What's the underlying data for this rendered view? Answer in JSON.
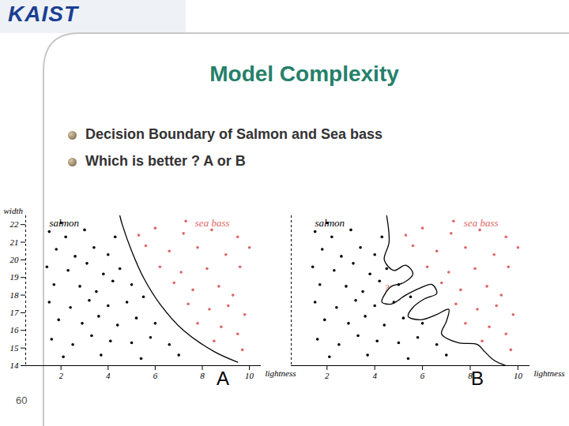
{
  "slide": {
    "logo": "KAIST",
    "title": "Model Complexity",
    "bullets": [
      "Decision Boundary of Salmon and Sea bass",
      "Which is better ?  A or B"
    ],
    "page_number": "60"
  },
  "chart_data": [
    {
      "type": "scatter",
      "title": "A",
      "x_label": "lightness",
      "y_label": "width",
      "xlim": [
        0.5,
        10.5
      ],
      "ylim": [
        14,
        22.5
      ],
      "xticks": [
        2,
        4,
        6,
        8,
        10
      ],
      "yticks": [
        14,
        15,
        16,
        17,
        18,
        19,
        20,
        21,
        22
      ],
      "grid": false,
      "tick_labels": true,
      "series": [
        {
          "name": "salmon",
          "color": "#000000",
          "marker": "circle",
          "x": [
            1.5,
            2.2,
            3.0,
            1.8,
            2.6,
            3.4,
            4.0,
            1.4,
            2.3,
            3.1,
            3.8,
            4.5,
            1.7,
            2.8,
            3.5,
            4.2,
            5.0,
            1.5,
            2.4,
            3.2,
            4.0,
            4.8,
            5.5,
            1.9,
            2.9,
            3.6,
            4.4,
            5.2,
            6.0,
            1.6,
            2.5,
            3.3,
            4.1,
            5.0,
            5.8,
            6.6,
            2.1,
            3.7,
            5.4,
            7.0,
            4.3,
            2.0
          ],
          "y": [
            21.6,
            21.3,
            21.7,
            20.6,
            20.2,
            20.7,
            20.3,
            19.6,
            19.4,
            19.8,
            19.2,
            19.5,
            18.6,
            18.5,
            18.2,
            18.8,
            18.6,
            17.6,
            17.3,
            17.7,
            17.4,
            17.6,
            17.9,
            16.6,
            16.4,
            16.8,
            16.3,
            16.7,
            16.4,
            15.5,
            15.2,
            15.7,
            15.4,
            15.3,
            15.6,
            15.2,
            14.5,
            14.6,
            14.4,
            14.6,
            21.3,
            22.1
          ]
        },
        {
          "name": "sea bass",
          "color": "#e06666",
          "marker": "circle",
          "x": [
            6.0,
            7.2,
            8.4,
            9.5,
            5.6,
            6.6,
            7.8,
            9.0,
            6.2,
            7.1,
            8.2,
            9.6,
            6.8,
            7.6,
            8.7,
            9.3,
            7.4,
            8.3,
            9.1,
            9.8,
            7.8,
            8.8,
            9.5,
            8.5,
            9.7,
            5.3,
            10.0,
            7.3
          ],
          "y": [
            21.8,
            21.5,
            21.7,
            21.3,
            20.8,
            20.5,
            20.7,
            20.3,
            19.6,
            19.3,
            19.5,
            19.6,
            18.7,
            18.3,
            18.5,
            18.0,
            17.5,
            17.2,
            17.4,
            16.9,
            16.4,
            16.2,
            15.8,
            15.4,
            14.9,
            21.4,
            20.7,
            22.2
          ]
        }
      ],
      "boundary": {
        "type": "line",
        "color": "#000000",
        "x": [
          4.5,
          4.6,
          5.0,
          5.5,
          6.2,
          7.2,
          8.5,
          9.5
        ],
        "y": [
          22.5,
          22,
          20.5,
          19,
          17.5,
          16,
          14.8,
          14.2
        ]
      }
    },
    {
      "type": "scatter",
      "title": "B",
      "x_label": "lightness",
      "xlim": [
        0.5,
        10.5
      ],
      "ylim": [
        14,
        22.5
      ],
      "xticks": [
        2,
        4,
        6,
        8,
        10
      ],
      "grid": false,
      "tick_labels": "x",
      "series": [
        {
          "name": "salmon",
          "color": "#000000",
          "marker": "circle",
          "x": [
            1.5,
            2.2,
            3.0,
            1.8,
            2.6,
            3.4,
            4.0,
            1.4,
            2.3,
            3.1,
            3.8,
            4.5,
            1.7,
            2.8,
            3.5,
            4.2,
            5.0,
            1.5,
            2.4,
            3.2,
            4.0,
            4.8,
            5.5,
            1.9,
            2.9,
            3.6,
            4.4,
            5.2,
            6.0,
            1.6,
            2.5,
            3.3,
            4.1,
            5.0,
            5.8,
            6.6,
            2.1,
            3.7,
            5.4,
            7.0,
            4.3,
            2.0
          ],
          "y": [
            21.6,
            21.3,
            21.7,
            20.6,
            20.2,
            20.7,
            20.3,
            19.6,
            19.4,
            19.8,
            19.2,
            19.5,
            18.6,
            18.5,
            18.2,
            18.8,
            18.6,
            17.6,
            17.3,
            17.7,
            17.4,
            17.6,
            17.9,
            16.6,
            16.4,
            16.8,
            16.3,
            16.7,
            16.4,
            15.5,
            15.2,
            15.7,
            15.4,
            15.3,
            15.6,
            15.2,
            14.5,
            14.6,
            14.4,
            14.6,
            21.3,
            22.1
          ]
        },
        {
          "name": "sea bass",
          "color": "#e06666",
          "marker": "circle",
          "x": [
            6.0,
            7.2,
            8.4,
            9.5,
            5.6,
            6.6,
            7.8,
            9.0,
            6.2,
            7.1,
            8.2,
            9.6,
            6.8,
            7.6,
            8.7,
            9.3,
            7.4,
            8.3,
            9.1,
            9.8,
            7.8,
            8.8,
            9.5,
            8.5,
            9.7,
            5.3,
            10.0,
            7.3
          ],
          "y": [
            21.8,
            21.5,
            21.7,
            21.3,
            20.8,
            20.5,
            20.7,
            20.3,
            19.6,
            19.3,
            19.5,
            19.6,
            18.7,
            18.3,
            18.5,
            18.0,
            17.5,
            17.2,
            17.4,
            16.9,
            16.4,
            16.2,
            15.8,
            15.4,
            14.9,
            21.4,
            20.7,
            22.2
          ]
        }
      ],
      "boundary": {
        "type": "line",
        "color": "#000000",
        "x": [
          4.5,
          4.6,
          4.4,
          4.8,
          5.3,
          5.6,
          5.2,
          4.7,
          4.4,
          4.3,
          4.7,
          5.3,
          5.9,
          6.4,
          6.6,
          6.1,
          5.6,
          5.4,
          5.9,
          6.6,
          7.1,
          7.0,
          6.8,
          7.5,
          8.3,
          8.6,
          9.0,
          9.5
        ],
        "y": [
          22.5,
          21,
          20,
          19.4,
          19.7,
          19.2,
          18.7,
          18.5,
          18,
          17.6,
          17.5,
          18.0,
          18.4,
          18.6,
          18.1,
          17.8,
          17.3,
          16.8,
          16.6,
          16.9,
          17.2,
          16.5,
          15.8,
          15.3,
          15.2,
          14.8,
          14.3,
          14.0
        ]
      },
      "annotations": [
        {
          "text": "?",
          "x": 4.5,
          "y": 18.4,
          "color": "#e06666"
        }
      ]
    }
  ]
}
